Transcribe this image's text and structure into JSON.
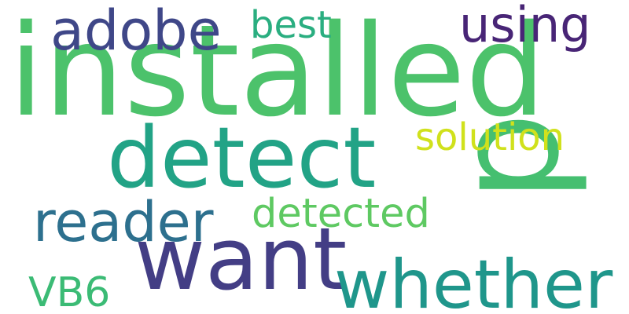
{
  "words": {
    "installed": {
      "text": "installed",
      "color": "#4cc26b"
    },
    "p": {
      "text": "p",
      "color": "#45bf70"
    },
    "detect": {
      "text": "detect",
      "color": "#22a386"
    },
    "want": {
      "text": "want",
      "color": "#433e85"
    },
    "whether": {
      "text": "whether",
      "color": "#1f968b"
    },
    "adobe": {
      "text": "adobe",
      "color": "#3f4788"
    },
    "reader": {
      "text": "reader",
      "color": "#2d708e"
    },
    "detected": {
      "text": "detected",
      "color": "#5ec962"
    },
    "using": {
      "text": "using",
      "color": "#482576"
    },
    "solution": {
      "text": "solution",
      "color": "#d0e11c"
    },
    "best": {
      "text": "best",
      "color": "#2aae80"
    },
    "vb6": {
      "text": "VB6",
      "color": "#3bbb75"
    }
  }
}
